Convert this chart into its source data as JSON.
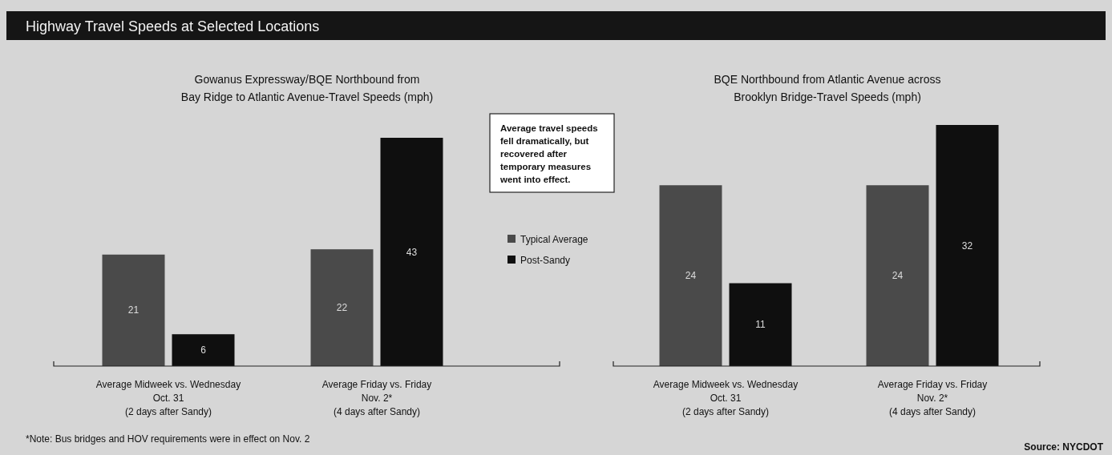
{
  "chart_data": [
    {
      "type": "bar",
      "title": "Highway Travel Speeds at Selected Locations",
      "subtitle": "Gowanus Expressway/BQE Northbound from\nBay Ridge to Atlantic Avenue-Travel Speeds (mph)",
      "categories": [
        "Average Midweek vs. Wednesday\nOct. 31\n(2 days after Sandy)",
        "Average Friday vs. Friday\nNov. 2*\n(4 days after Sandy)"
      ],
      "series": [
        {
          "name": "Typical Average",
          "color": "#4a4a4a",
          "values": [
            21,
            22
          ]
        },
        {
          "name": "Post-Sandy",
          "color": "#0f0f0f",
          "values": [
            6,
            43
          ]
        }
      ],
      "data_labels": true,
      "legend": "right",
      "annotations": [
        "Average travel speeds\nfell dramatically, but\nrecovered after\ntemporary measures\nwent into effect.",
        "*Note: Bus bridges and HOV requirements were in effect on Nov. 2"
      ]
    },
    {
      "type": "bar",
      "title": "BQE Northbound from Atlantic Avenue across\nBrooklyn Bridge-Travel Speeds (mph)",
      "categories": [
        "Average Midweek vs. Wednesday\nOct. 31\n(2 days after Sandy)",
        "Average Friday vs. Friday\nNov. 2*\n(4 days after Sandy)"
      ],
      "series": [
        {
          "color": "#4a4a4a",
          "values": [
            24,
            24
          ]
        },
        {
          "color": "#0f0f0f",
          "values": [
            11,
            32
          ]
        }
      ],
      "data_labels": true,
      "annotations": [
        "Source: NYCDOT"
      ]
    }
  ]
}
